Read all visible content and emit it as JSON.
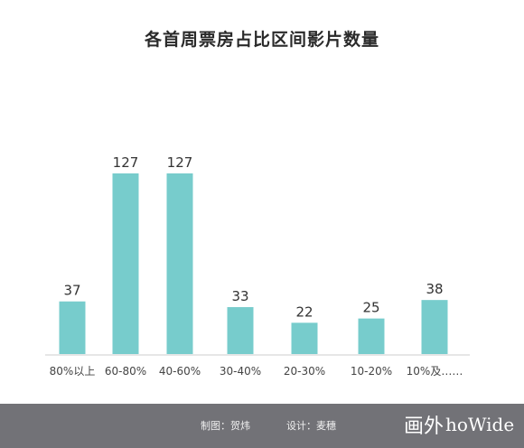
{
  "chart_data": {
    "type": "bar",
    "title": "各首周票房占比区间影片数量",
    "categories": [
      "80%以上",
      "60-80%",
      "40-60%",
      "30-40%",
      "20-30%",
      "10-20%",
      "10%及……"
    ],
    "values": [
      37,
      127,
      127,
      33,
      22,
      25,
      38
    ],
    "data_labels": [
      "37",
      "127",
      "127",
      "33",
      "22",
      "25",
      "38"
    ],
    "bar_color": "#77cccc",
    "ylim": [
      0,
      130
    ],
    "grid": false,
    "legend": "none"
  },
  "footer": {
    "maker": "制图：贺炜",
    "designer": "设计：麦穗",
    "brand_cn": "画外",
    "brand_en": "hoWide",
    "background": "#727277"
  }
}
